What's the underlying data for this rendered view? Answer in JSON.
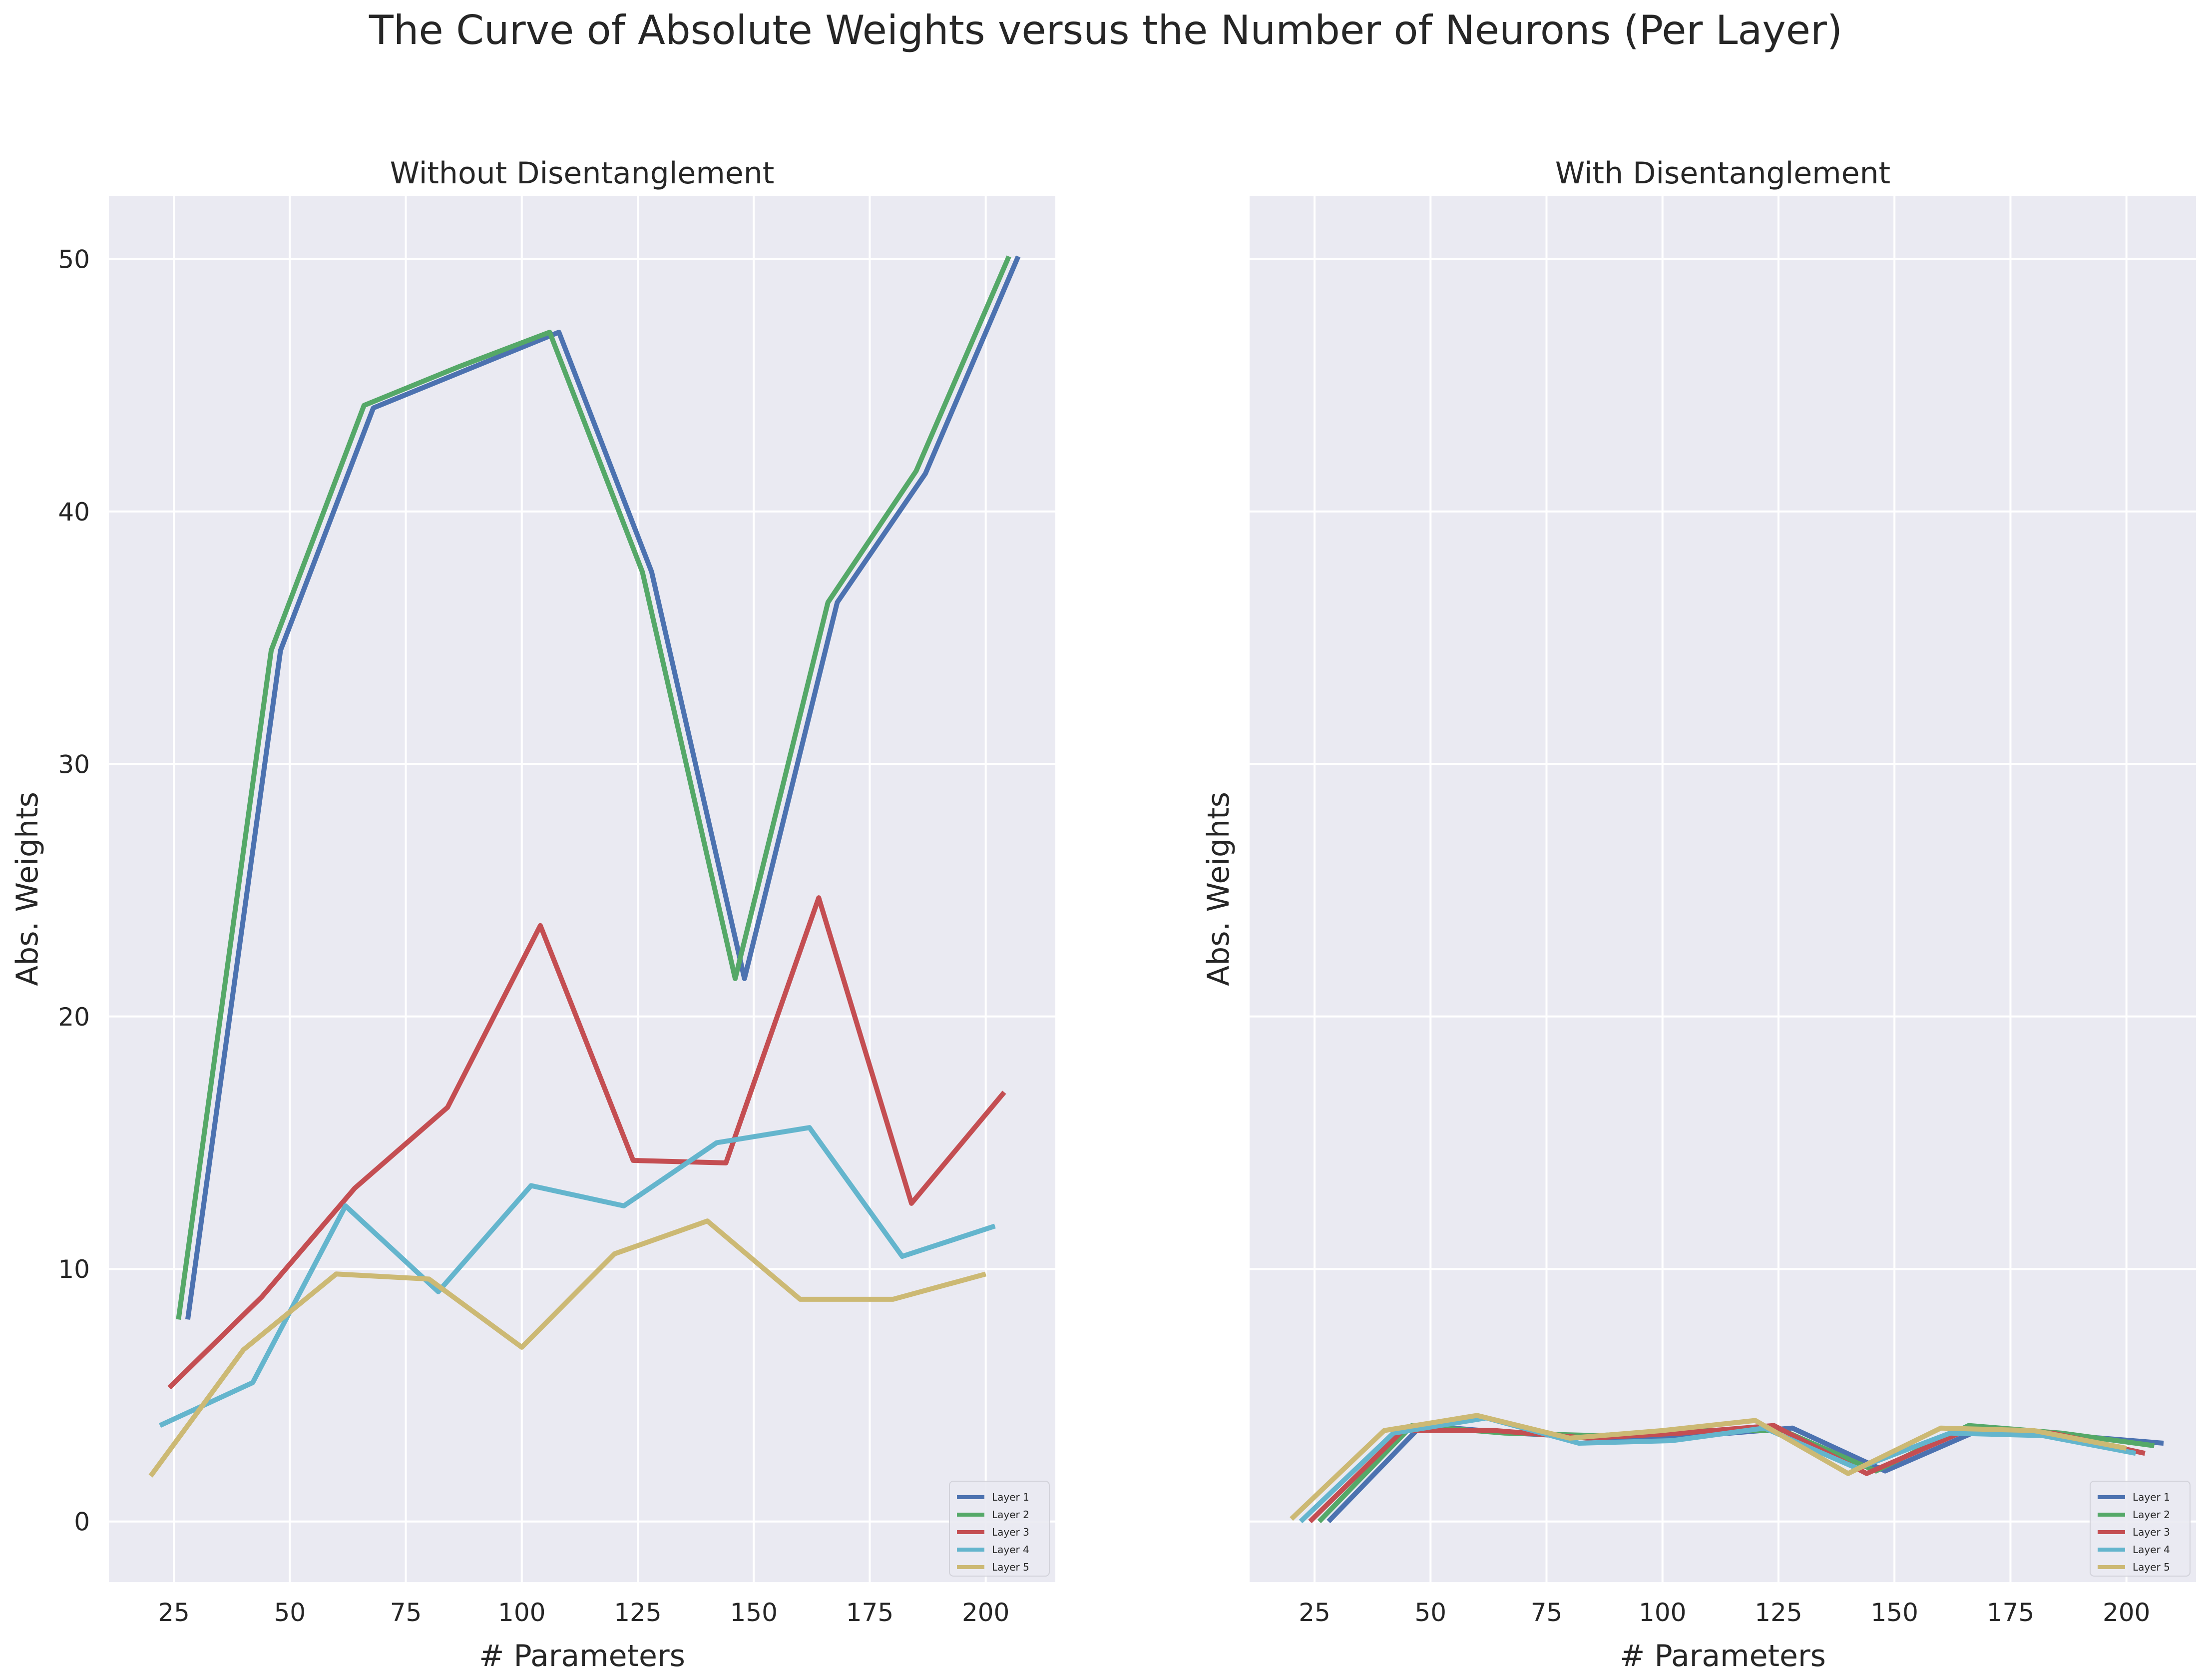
{
  "title": "The Curve of Absolute Weights versus the Number of Neurons (Per Layer)",
  "chart_data": [
    {
      "type": "line",
      "title": "Without Disentanglement",
      "xlabel": "# Parameters",
      "ylabel": "Abs. Weights",
      "xlim": [
        11,
        215
      ],
      "ylim": [
        -2.4,
        52.5
      ],
      "xticks": [
        25,
        50,
        75,
        100,
        125,
        150,
        175,
        200
      ],
      "yticks": [
        0,
        10,
        20,
        30,
        40,
        50
      ],
      "grid": true,
      "legend": "lower-right",
      "series": [
        {
          "name": "Layer 1",
          "color": "#4c72b0",
          "x": [
            28,
            48,
            68,
            88,
            108,
            128,
            148,
            168,
            187,
            207
          ],
          "y": [
            8.0,
            34.5,
            44.1,
            45.6,
            47.1,
            37.6,
            21.5,
            36.4,
            41.5,
            50.1
          ]
        },
        {
          "name": "Layer 2",
          "color": "#55a868",
          "x": [
            26,
            46,
            66,
            86,
            106,
            126,
            146,
            166,
            185,
            205
          ],
          "y": [
            8.0,
            34.5,
            44.2,
            45.7,
            47.1,
            37.6,
            21.5,
            36.4,
            41.6,
            50.1
          ]
        },
        {
          "name": "Layer 3",
          "color": "#c44e52",
          "x": [
            24,
            44,
            64,
            84,
            104,
            124,
            144,
            164,
            184,
            204
          ],
          "y": [
            5.3,
            8.9,
            13.2,
            16.4,
            23.6,
            14.3,
            14.2,
            24.7,
            12.6,
            17.0
          ]
        },
        {
          "name": "Layer 4",
          "color": "#64b5cd",
          "x": [
            22,
            42,
            62,
            82,
            102,
            122,
            142,
            162,
            182,
            202
          ],
          "y": [
            3.8,
            5.5,
            12.5,
            9.1,
            13.3,
            12.5,
            15.0,
            15.6,
            10.5,
            11.7
          ]
        },
        {
          "name": "Layer 5",
          "color": "#ccb974",
          "x": [
            20,
            40,
            60,
            80,
            100,
            120,
            140,
            160,
            180,
            200
          ],
          "y": [
            1.8,
            6.8,
            9.8,
            9.6,
            6.9,
            10.6,
            11.9,
            8.8,
            8.8,
            9.8
          ]
        }
      ]
    },
    {
      "type": "line",
      "title": "With Disentanglement",
      "xlabel": "# Parameters",
      "ylabel": "Abs. Weights",
      "xlim": [
        11,
        215
      ],
      "ylim": [
        -2.4,
        52.5
      ],
      "xticks": [
        25,
        50,
        75,
        100,
        125,
        150,
        175,
        200
      ],
      "yticks": [
        0,
        10,
        20,
        30,
        40,
        50
      ],
      "grid": true,
      "legend": "lower-right",
      "series": [
        {
          "name": "Layer 1",
          "color": "#4c72b0",
          "x": [
            28,
            48,
            68,
            88,
            108,
            128,
            148,
            168,
            188,
            208
          ],
          "y": [
            0.0,
            3.8,
            3.5,
            3.3,
            3.4,
            3.7,
            2.0,
            3.6,
            3.4,
            3.1
          ]
        },
        {
          "name": "Layer 2",
          "color": "#55a868",
          "x": [
            26,
            46,
            66,
            86,
            106,
            126,
            146,
            166,
            186,
            206
          ],
          "y": [
            0.0,
            3.8,
            3.5,
            3.4,
            3.6,
            3.6,
            2.0,
            3.8,
            3.5,
            3.0
          ]
        },
        {
          "name": "Layer 3",
          "color": "#c44e52",
          "x": [
            24,
            44,
            64,
            84,
            104,
            124,
            144,
            164,
            184,
            204
          ],
          "y": [
            0.0,
            3.6,
            3.6,
            3.3,
            3.5,
            3.8,
            1.9,
            3.5,
            3.5,
            2.7
          ]
        },
        {
          "name": "Layer 4",
          "color": "#64b5cd",
          "x": [
            22,
            42,
            62,
            82,
            102,
            122,
            142,
            162,
            182,
            202
          ],
          "y": [
            0.0,
            3.5,
            4.1,
            3.1,
            3.2,
            3.7,
            2.1,
            3.5,
            3.4,
            2.7
          ]
        },
        {
          "name": "Layer 5",
          "color": "#ccb974",
          "x": [
            20,
            40,
            60,
            80,
            100,
            120,
            140,
            160,
            180,
            200
          ],
          "y": [
            0.1,
            3.6,
            4.2,
            3.3,
            3.6,
            4.0,
            1.9,
            3.7,
            3.6,
            2.9
          ]
        }
      ]
    }
  ]
}
